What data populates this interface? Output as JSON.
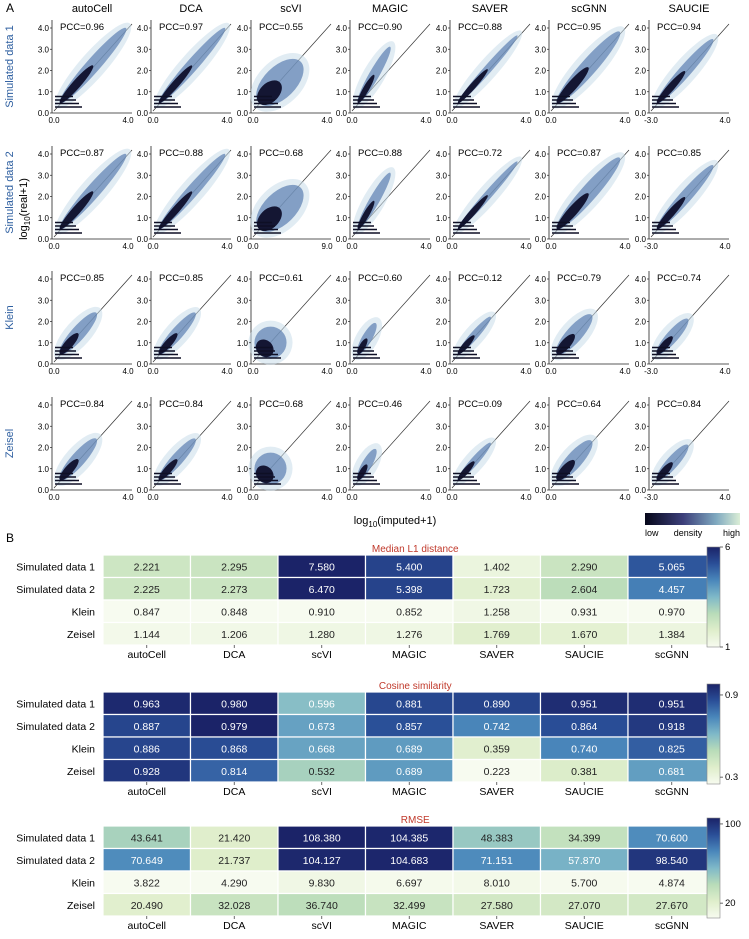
{
  "panel_a": {
    "label": "A",
    "methods": [
      "autoCell",
      "DCA",
      "scVI",
      "MAGIC",
      "SAVER",
      "scGNN",
      "SAUCIE"
    ],
    "datasets": [
      "Simulated data 1",
      "Simulated data 2",
      "Klein",
      "Zeisel"
    ],
    "x_label_main": "log",
    "x_label_sub": "10",
    "x_label_rest": "(imputed+1)",
    "y_label_main": "log",
    "y_label_sub": "10",
    "y_label_rest": "(real+1)",
    "y_ticks": [
      [
        "0.0",
        "1.0",
        "2.0",
        "3.0",
        "4.0"
      ],
      [
        "0.0",
        "1.0",
        "2.0",
        "3.0",
        "4.0"
      ],
      [
        "0.0",
        "1.0",
        "2.0",
        "3.0",
        "4.0"
      ],
      [
        "0.0",
        "1.0",
        "2.0",
        "3.0",
        "4.0"
      ]
    ],
    "x_ticks": [
      [
        [
          "0.0",
          "4.0"
        ],
        [
          "0.0",
          "4.0"
        ],
        [
          "0.0",
          "4.0"
        ],
        [
          "0.0",
          "4.0"
        ],
        [
          "0.0",
          "4.0"
        ],
        [
          "0.0",
          "4.0"
        ],
        [
          "-3.0",
          "4.0"
        ]
      ],
      [
        [
          "0.0",
          "4.0"
        ],
        [
          "0.0",
          "4.0"
        ],
        [
          "0.0",
          "9.0"
        ],
        [
          "0.0",
          "4.0"
        ],
        [
          "0.0",
          "4.0"
        ],
        [
          "0.0",
          "4.0"
        ],
        [
          "-3.0",
          "4.0"
        ]
      ],
      [
        [
          "0.0",
          "4.0"
        ],
        [
          "0.0",
          "4.0"
        ],
        [
          "0.0",
          "4.0"
        ],
        [
          "0.0",
          "4.0"
        ],
        [
          "0.0",
          "4.0"
        ],
        [
          "0.0",
          "4.0"
        ],
        [
          "-3.0",
          "4.0"
        ]
      ],
      [
        [
          "0.0",
          "4.0"
        ],
        [
          "0.0",
          "4.0"
        ],
        [
          "0.0",
          "4.0"
        ],
        [
          "0.0",
          "4.0"
        ],
        [
          "0.0",
          "4.0"
        ],
        [
          "0.0",
          "4.0"
        ],
        [
          "-3.0",
          "4.0"
        ]
      ]
    ],
    "pcc": [
      [
        "PCC=0.96",
        "PCC=0.97",
        "PCC=0.55",
        "PCC=0.90",
        "PCC=0.88",
        "PCC=0.95",
        "PCC=0.94"
      ],
      [
        "PCC=0.87",
        "PCC=0.88",
        "PCC=0.68",
        "PCC=0.88",
        "PCC=0.72",
        "PCC=0.87",
        "PCC=0.85"
      ],
      [
        "PCC=0.85",
        "PCC=0.85",
        "PCC=0.61",
        "PCC=0.60",
        "PCC=0.12",
        "PCC=0.79",
        "PCC=0.74"
      ],
      [
        "PCC=0.84",
        "PCC=0.84",
        "PCC=0.68",
        "PCC=0.46",
        "PCC=0.09",
        "PCC=0.64",
        "PCC=0.84"
      ]
    ],
    "density_legend": {
      "low": "low",
      "mid": "density",
      "high": "high"
    }
  },
  "panel_b": {
    "label": "B",
    "chart_data": [
      {
        "type": "heatmap",
        "title": "Median L1 distance",
        "rows": [
          "Simulated data 1",
          "Simulated data 2",
          "Klein",
          "Zeisel"
        ],
        "columns": [
          "autoCell",
          "DCA",
          "scVI",
          "MAGIC",
          "SAVER",
          "SAUCIE",
          "scGNN"
        ],
        "values": [
          [
            2.221,
            2.295,
            7.58,
            5.4,
            1.402,
            2.29,
            5.065
          ],
          [
            2.225,
            2.273,
            6.47,
            5.398,
            1.723,
            2.604,
            4.457
          ],
          [
            0.847,
            0.848,
            0.91,
            0.852,
            1.258,
            0.931,
            0.97
          ],
          [
            1.144,
            1.206,
            1.28,
            1.276,
            1.769,
            1.67,
            1.384
          ]
        ],
        "labels": [
          [
            "2.221",
            "2.295",
            "7.580",
            "5.400",
            "1.402",
            "2.290",
            "5.065"
          ],
          [
            "2.225",
            "2.273",
            "6.470",
            "5.398",
            "1.723",
            "2.604",
            "4.457"
          ],
          [
            "0.847",
            "0.848",
            "0.910",
            "0.852",
            "1.258",
            "0.931",
            "0.970"
          ],
          [
            "1.144",
            "1.206",
            "1.280",
            "1.276",
            "1.769",
            "1.670",
            "1.384"
          ]
        ],
        "colorbar": {
          "min": 1,
          "max": 6,
          "tick_values": [
            6,
            1
          ],
          "tick_labels": [
            "6",
            "1"
          ]
        },
        "colormap": [
          "#f7fbf0",
          "#dfeecb",
          "#b9dcb9",
          "#7fb9c8",
          "#4a87bb",
          "#2a4f98",
          "#1b2368"
        ]
      },
      {
        "type": "heatmap",
        "title": "Cosine similarity",
        "rows": [
          "Simulated data 1",
          "Simulated data 2",
          "Klein",
          "Zeisel"
        ],
        "columns": [
          "autoCell",
          "DCA",
          "scVI",
          "MAGIC",
          "SAVER",
          "SAUCIE",
          "scGNN"
        ],
        "values": [
          [
            0.963,
            0.98,
            0.596,
            0.881,
            0.89,
            0.951,
            0.951
          ],
          [
            0.887,
            0.979,
            0.673,
            0.857,
            0.742,
            0.864,
            0.918
          ],
          [
            0.886,
            0.868,
            0.668,
            0.689,
            0.359,
            0.74,
            0.825
          ],
          [
            0.928,
            0.814,
            0.532,
            0.689,
            0.223,
            0.381,
            0.681
          ]
        ],
        "labels": [
          [
            "0.963",
            "0.980",
            "0.596",
            "0.881",
            "0.890",
            "0.951",
            "0.951"
          ],
          [
            "0.887",
            "0.979",
            "0.673",
            "0.857",
            "0.742",
            "0.864",
            "0.918"
          ],
          [
            "0.886",
            "0.868",
            "0.668",
            "0.689",
            "0.359",
            "0.740",
            "0.825"
          ],
          [
            "0.928",
            "0.814",
            "0.532",
            "0.689",
            "0.223",
            "0.381",
            "0.681"
          ]
        ],
        "colorbar": {
          "min": 0.25,
          "max": 0.98,
          "tick_values": [
            0.9,
            0.3
          ],
          "tick_labels": [
            "0.9",
            "0.3"
          ]
        },
        "colormap": [
          "#f7fbf0",
          "#dfeecb",
          "#b9dcb9",
          "#7fb9c8",
          "#4a87bb",
          "#2a4f98",
          "#1b2368"
        ]
      },
      {
        "type": "heatmap",
        "title": "RMSE",
        "rows": [
          "Simulated data 1",
          "Simulated data 2",
          "Klein",
          "Zeisel"
        ],
        "columns": [
          "autoCell",
          "DCA",
          "scVI",
          "MAGIC",
          "SAVER",
          "SAUCIE",
          "scGNN"
        ],
        "values": [
          [
            43.641,
            21.42,
            108.38,
            104.385,
            48.383,
            34.399,
            70.6
          ],
          [
            70.649,
            21.737,
            104.127,
            104.683,
            71.151,
            57.87,
            98.54
          ],
          [
            3.822,
            4.29,
            9.83,
            6.697,
            8.01,
            5.7,
            4.874
          ],
          [
            20.49,
            32.028,
            36.74,
            32.499,
            27.58,
            27.07,
            27.67
          ]
        ],
        "labels": [
          [
            "43.641",
            "21.420",
            "108.380",
            "104.385",
            "48.383",
            "34.399",
            "70.600"
          ],
          [
            "70.649",
            "21.737",
            "104.127",
            "104.683",
            "71.151",
            "57.870",
            "98.540"
          ],
          [
            "3.822",
            "4.290",
            "9.830",
            "6.697",
            "8.010",
            "5.700",
            "4.874"
          ],
          [
            "20.490",
            "32.028",
            "36.740",
            "32.499",
            "27.580",
            "27.070",
            "27.670"
          ]
        ],
        "colorbar": {
          "min": 5,
          "max": 106,
          "tick_values": [
            100,
            20
          ],
          "tick_labels": [
            "100",
            "20"
          ]
        },
        "colormap": [
          "#f7fbf0",
          "#dfeecb",
          "#b9dcb9",
          "#7fb9c8",
          "#4a87bb",
          "#2a4f98",
          "#1b2368"
        ]
      }
    ]
  }
}
